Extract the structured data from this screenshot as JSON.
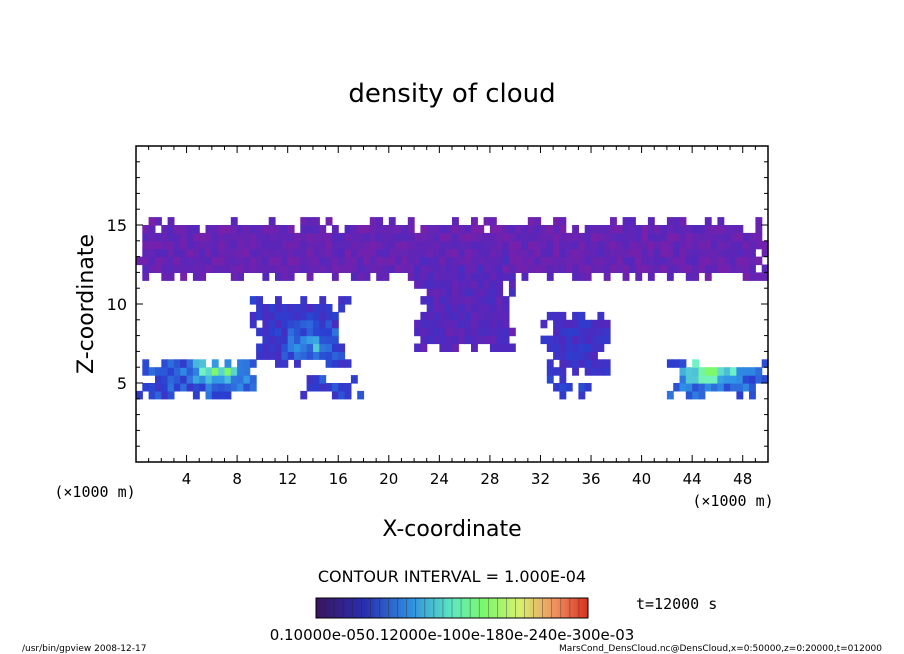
{
  "chart_data": {
    "type": "heatmap",
    "title": "density of cloud",
    "xlabel": "X-coordinate",
    "ylabel": "Z-coordinate",
    "x_unit": "(×1000 m)",
    "z_unit": "(×1000 m)",
    "xlim": [
      0,
      50
    ],
    "ylim": [
      0,
      20
    ],
    "x_ticks": [
      "4",
      "8",
      "12",
      "16",
      "20",
      "24",
      "28",
      "32",
      "36",
      "40",
      "44",
      "48"
    ],
    "y_ticks": [
      "5",
      "10",
      "15"
    ],
    "contour_interval": "CONTOUR INTERVAL = 1.000E-04",
    "time": "t=12000 s",
    "colorbar_labels": "0.10000e-050.12000e-100e-180e-240e-300e-03",
    "colorbar_range": [
      1e-05,
      0.003
    ],
    "colors": {
      "low": "#7d1fa8",
      "mid": "#2a3fd0",
      "high": "#6ff2c8",
      "peak": "#7cf86a"
    },
    "cloud_regions": [
      {
        "x0": 0,
        "x1": 50,
        "z0": 11.5,
        "z1": 15.3,
        "level": 0.15
      },
      {
        "x0": 22,
        "x1": 30,
        "z0": 7.0,
        "z1": 13.0,
        "level": 0.25
      },
      {
        "x0": 9,
        "x1": 17,
        "z0": 6.0,
        "z1": 10.5,
        "level": 0.45
      },
      {
        "x0": 32,
        "x1": 38,
        "z0": 5.5,
        "z1": 9.5,
        "level": 0.4
      },
      {
        "x0": 0,
        "x1": 10,
        "z0": 4.0,
        "z1": 6.5,
        "level": 0.55
      },
      {
        "x0": 42,
        "x1": 50,
        "z0": 4.0,
        "z1": 6.5,
        "level": 0.6
      },
      {
        "x0": 13,
        "x1": 18,
        "z0": 4.0,
        "z1": 5.5,
        "level": 0.5
      },
      {
        "x0": 32,
        "x1": 36,
        "z0": 4.0,
        "z1": 5.5,
        "level": 0.5
      }
    ],
    "peaks": [
      {
        "x": 6.5,
        "z": 5.8,
        "level": 1.0
      },
      {
        "x": 45.5,
        "z": 5.8,
        "level": 1.0
      },
      {
        "x": 14.0,
        "z": 7.5,
        "level": 0.8
      }
    ]
  },
  "footer": {
    "left": "/usr/bin/gpview   2008-12-17",
    "right": "MarsCond_DensCloud.nc@DensCloud,x=0:50000,z=0:20000,t=012000"
  }
}
